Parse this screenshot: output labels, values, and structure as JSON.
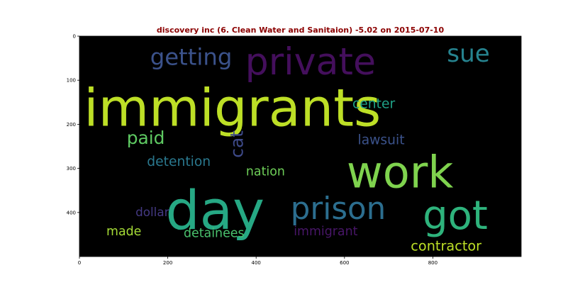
{
  "chart_data": {
    "type": "wordcloud",
    "title": "discovery inc (6. Clean Water and Sanitaion) -5.02 on 2015-07-10",
    "title_color": "#8b0000",
    "background": "#000000",
    "xlim": [
      0,
      1000
    ],
    "ylim": [
      500,
      0
    ],
    "x_ticks": [
      0,
      200,
      400,
      600,
      800
    ],
    "y_ticks": [
      0,
      100,
      200,
      300,
      400
    ],
    "words": [
      {
        "text": "immigrants",
        "color": "#bddf26",
        "x": 10,
        "y": 203,
        "size": 118,
        "orient": "h"
      },
      {
        "text": "day",
        "color": "#26a884",
        "x": 195,
        "y": 437,
        "size": 122,
        "orient": "h"
      },
      {
        "text": "work",
        "color": "#7fd34e",
        "x": 605,
        "y": 343,
        "size": 100,
        "orient": "h"
      },
      {
        "text": "private",
        "color": "#440f5c",
        "x": 375,
        "y": 87,
        "size": 84,
        "orient": "h"
      },
      {
        "text": "got",
        "color": "#2eb37c",
        "x": 777,
        "y": 437,
        "size": 90,
        "orient": "h"
      },
      {
        "text": "prison",
        "color": "#2c6e8f",
        "x": 478,
        "y": 415,
        "size": 70,
        "orient": "h"
      },
      {
        "text": "getting",
        "color": "#3b528b",
        "x": 160,
        "y": 65,
        "size": 52,
        "orient": "h"
      },
      {
        "text": "sue",
        "color": "#26838f",
        "x": 832,
        "y": 58,
        "size": 55,
        "orient": "h"
      },
      {
        "text": "paid",
        "color": "#5ec962",
        "x": 107,
        "y": 244,
        "size": 40,
        "orient": "h"
      },
      {
        "text": "cat",
        "color": "#3e4a89",
        "x": 370,
        "y": 276,
        "size": 40,
        "orient": "v"
      },
      {
        "text": "center",
        "color": "#1fa187",
        "x": 618,
        "y": 163,
        "size": 30,
        "orient": "h"
      },
      {
        "text": "lawsuit",
        "color": "#3b528b",
        "x": 630,
        "y": 245,
        "size": 30,
        "orient": "h"
      },
      {
        "text": "detention",
        "color": "#2a788e",
        "x": 153,
        "y": 294,
        "size": 30,
        "orient": "h"
      },
      {
        "text": "nation",
        "color": "#6ece58",
        "x": 377,
        "y": 316,
        "size": 28,
        "orient": "h"
      },
      {
        "text": "dollar",
        "color": "#443983",
        "x": 127,
        "y": 408,
        "size": 27,
        "orient": "h"
      },
      {
        "text": "made",
        "color": "#a5db36",
        "x": 61,
        "y": 452,
        "size": 28,
        "orient": "h"
      },
      {
        "text": "detainees",
        "color": "#4ac16d",
        "x": 236,
        "y": 456,
        "size": 28,
        "orient": "h"
      },
      {
        "text": "immigrant",
        "color": "#481668",
        "x": 485,
        "y": 452,
        "size": 28,
        "orient": "h"
      },
      {
        "text": "contractor",
        "color": "#bddf26",
        "x": 750,
        "y": 486,
        "size": 31,
        "orient": "h"
      }
    ]
  }
}
